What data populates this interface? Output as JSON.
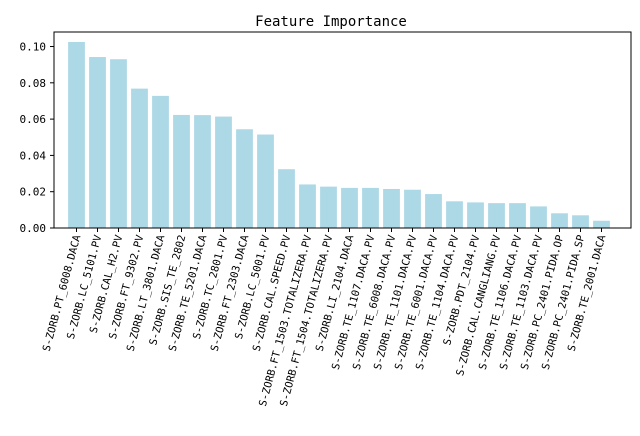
{
  "chart_data": {
    "type": "bar",
    "title": "Feature Importance",
    "xlabel": "",
    "ylabel": "",
    "ylim": [
      0,
      0.108
    ],
    "yticks": [
      "0.00",
      "0.02",
      "0.04",
      "0.06",
      "0.08",
      "0.10"
    ],
    "grid": false,
    "bar_color": "#add8e6",
    "categories": [
      "S-ZORB.PT_6008.DACA",
      "S-ZORB.LC_5101.PV",
      "S-ZORB.CAL_H2.PV",
      "S-ZORB.FT_9302.PV",
      "S-ZORB.LT_3801.DACA",
      "S-ZORB.SIS_TE_2802",
      "S-ZORB.TE_5201.DACA",
      "S-ZORB.TC_2801.PV",
      "S-ZORB.FT_2303.DACA",
      "S-ZORB.LC_5001.PV",
      "S-ZORB.CAL.SPEED.PV",
      "S-ZORB.FT_1503.TOTALIZERA.PV",
      "S-ZORB.FT_1504.TOTALIZERA.PV",
      "S-ZORB.LI_2104.DACA",
      "S-ZORB.TE_1107.DACA.PV",
      "S-ZORB.TE_6008.DACA.PV",
      "S-ZORB.TE_1101.DACA.PV",
      "S-ZORB.TE_6001.DACA.PV",
      "S-ZORB.TE_1104.DACA.PV",
      "S-ZORB.PDT_2104.PV",
      "S-ZORB.CAL.CANGLIANG.PV",
      "S-ZORB.TE_1106.DACA.PV",
      "S-ZORB.TE_1103.DACA.PV",
      "S-ZORB.PC_2401.PIDA.OP",
      "S-ZORB.PC_2401.PIDA.SP",
      "S-ZORB.TE_2001.DACA"
    ],
    "values": [
      0.1025,
      0.0942,
      0.093,
      0.0768,
      0.0728,
      0.0623,
      0.0622,
      0.0614,
      0.0544,
      0.0515,
      0.0324,
      0.024,
      0.0228,
      0.0221,
      0.0221,
      0.0215,
      0.0211,
      0.0187,
      0.0147,
      0.0141,
      0.0137,
      0.0137,
      0.0119,
      0.0081,
      0.007,
      0.004
    ]
  }
}
